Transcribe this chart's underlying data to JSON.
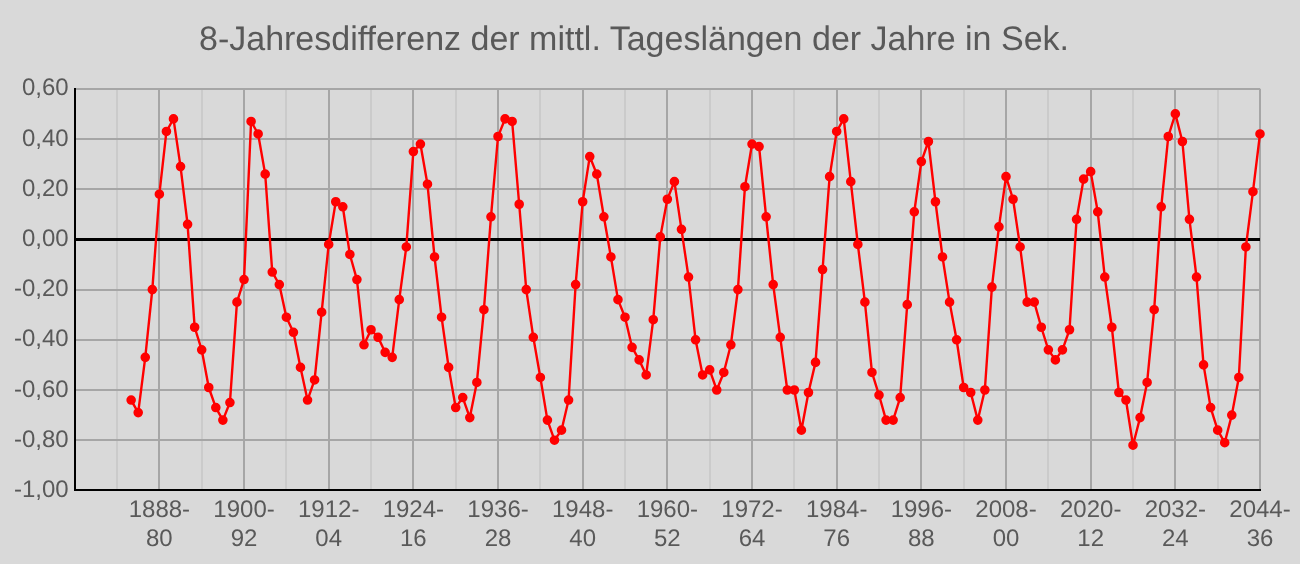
{
  "chart_data": {
    "type": "line",
    "title": "8-Jahresdifferenz der mittl. Tageslängen der Jahre in Sek.",
    "categories": [
      null,
      null,
      null,
      null,
      null,
      null,
      null,
      null,
      null,
      null,
      null,
      null,
      "1888-80",
      null,
      null,
      null,
      null,
      null,
      null,
      null,
      null,
      null,
      null,
      null,
      "1900-92",
      null,
      null,
      null,
      null,
      null,
      null,
      null,
      null,
      null,
      null,
      null,
      "1912-04",
      null,
      null,
      null,
      null,
      null,
      null,
      null,
      null,
      null,
      null,
      null,
      "1924-16",
      null,
      null,
      null,
      null,
      null,
      null,
      null,
      null,
      null,
      null,
      null,
      "1936-28",
      null,
      null,
      null,
      null,
      null,
      null,
      null,
      null,
      null,
      null,
      null,
      "1948-40",
      null,
      null,
      null,
      null,
      null,
      null,
      null,
      null,
      null,
      null,
      null,
      "1960-52",
      null,
      null,
      null,
      null,
      null,
      null,
      null,
      null,
      null,
      null,
      null,
      "1972-64",
      null,
      null,
      null,
      null,
      null,
      null,
      null,
      null,
      null,
      null,
      null,
      "1984-76",
      null,
      null,
      null,
      null,
      null,
      null,
      null,
      null,
      null,
      null,
      null,
      "1996-88",
      null,
      null,
      null,
      null,
      null,
      null,
      null,
      null,
      null,
      null,
      null,
      "2008-00",
      null,
      null,
      null,
      null,
      null,
      null,
      null,
      null,
      null,
      null,
      null,
      "2020-12",
      null,
      null,
      null,
      null,
      null,
      null,
      null,
      null,
      null,
      null,
      null,
      "2032-24",
      null,
      null,
      null,
      null,
      null,
      null,
      null,
      null,
      null,
      null,
      null,
      "2044-36"
    ],
    "series": [
      {
        "color": "#ff0000",
        "values": [
          null,
          null,
          null,
          null,
          null,
          null,
          null,
          null,
          -0.64,
          -0.69,
          -0.47,
          -0.2,
          0.18,
          0.43,
          0.48,
          0.29,
          0.06,
          -0.35,
          -0.44,
          -0.59,
          -0.67,
          -0.72,
          -0.65,
          -0.25,
          -0.16,
          0.47,
          0.42,
          0.26,
          -0.13,
          -0.18,
          -0.31,
          -0.37,
          -0.51,
          -0.64,
          -0.56,
          -0.29,
          -0.02,
          0.15,
          0.13,
          -0.06,
          -0.16,
          -0.42,
          -0.36,
          -0.39,
          -0.45,
          -0.47,
          -0.24,
          -0.03,
          0.35,
          0.38,
          0.22,
          -0.07,
          -0.31,
          -0.51,
          -0.67,
          -0.63,
          -0.71,
          -0.57,
          -0.28,
          0.09,
          0.41,
          0.48,
          0.47,
          0.14,
          -0.2,
          -0.39,
          -0.55,
          -0.72,
          -0.8,
          -0.76,
          -0.64,
          -0.18,
          0.15,
          0.33,
          0.26,
          0.09,
          -0.07,
          -0.24,
          -0.31,
          -0.43,
          -0.48,
          -0.54,
          -0.32,
          0.01,
          0.16,
          0.23,
          0.04,
          -0.15,
          -0.4,
          -0.54,
          -0.52,
          -0.6,
          -0.53,
          -0.42,
          -0.2,
          0.21,
          0.38,
          0.37,
          0.09,
          -0.18,
          -0.39,
          -0.6,
          -0.6,
          -0.76,
          -0.61,
          -0.49,
          -0.12,
          0.25,
          0.43,
          0.48,
          0.23,
          -0.02,
          -0.25,
          -0.53,
          -0.62,
          -0.72,
          -0.72,
          -0.63,
          -0.26,
          0.11,
          0.31,
          0.39,
          0.15,
          -0.07,
          -0.25,
          -0.4,
          -0.59,
          -0.61,
          -0.72,
          -0.6,
          -0.19,
          0.05,
          0.25,
          0.16,
          -0.03,
          -0.25,
          -0.25,
          -0.35,
          -0.44,
          -0.48,
          -0.44,
          -0.36,
          0.08,
          0.24,
          0.27,
          0.11,
          -0.15,
          -0.35,
          -0.61,
          -0.64,
          -0.82,
          -0.71,
          -0.57,
          -0.28,
          0.13,
          0.41,
          0.5,
          0.39,
          0.08,
          -0.15,
          -0.5,
          -0.67,
          -0.76,
          -0.81,
          -0.7,
          -0.55,
          -0.03,
          0.19,
          0.42
        ]
      }
    ],
    "ylim": [
      -1,
      0.6
    ],
    "yticks": [
      {
        "value": -1,
        "label": "-1,00"
      },
      {
        "value": -0.8,
        "label": "-0,80"
      },
      {
        "value": -0.6,
        "label": "-0,60"
      },
      {
        "value": -0.4,
        "label": "-0,40"
      },
      {
        "value": -0.2,
        "label": "-0,20"
      },
      {
        "value": 0,
        "label": "0,00"
      },
      {
        "value": 0.2,
        "label": "0,20"
      },
      {
        "value": 0.4,
        "label": "0,40"
      },
      {
        "value": 0.6,
        "label": "0,60"
      }
    ],
    "grid": true,
    "marker": "circle",
    "line_style": "solid"
  }
}
